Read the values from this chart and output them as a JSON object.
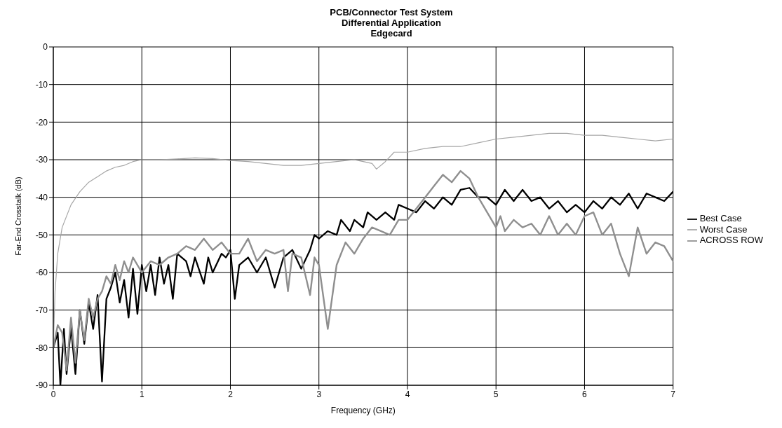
{
  "chart_data": {
    "type": "line",
    "title": "PCB/Connector Test System",
    "subtitle": "Differential Application\nEdgecard",
    "xlabel": "Frequency (GHz)",
    "ylabel": "Far-End Crosstalk (dB)",
    "xlim": [
      0,
      7
    ],
    "xticks": [
      0,
      1,
      2,
      3,
      4,
      5,
      6,
      7
    ],
    "ylim": [
      -90,
      0
    ],
    "yticks": [
      -90,
      -80,
      -70,
      -60,
      -50,
      -40,
      -30,
      -20,
      -10,
      0
    ],
    "grid": true,
    "legend": "right",
    "marker": "none",
    "line_style": "solid",
    "series": [
      {
        "name": "Best Case",
        "color": "#000000",
        "x": [
          0,
          0.05,
          0.08,
          0.12,
          0.15,
          0.2,
          0.25,
          0.3,
          0.35,
          0.4,
          0.45,
          0.5,
          0.55,
          0.6,
          0.65,
          0.7,
          0.75,
          0.8,
          0.85,
          0.9,
          0.95,
          1.0,
          1.05,
          1.1,
          1.15,
          1.2,
          1.25,
          1.3,
          1.35,
          1.4,
          1.5,
          1.55,
          1.6,
          1.7,
          1.75,
          1.8,
          1.9,
          1.95,
          2.0,
          2.05,
          2.1,
          2.2,
          2.3,
          2.4,
          2.5,
          2.6,
          2.7,
          2.8,
          2.9,
          2.95,
          3.0,
          3.1,
          3.2,
          3.25,
          3.35,
          3.4,
          3.5,
          3.55,
          3.65,
          3.75,
          3.85,
          3.9,
          4.0,
          4.1,
          4.2,
          4.3,
          4.4,
          4.5,
          4.6,
          4.7,
          4.8,
          4.9,
          5.0,
          5.1,
          5.2,
          5.3,
          5.4,
          5.5,
          5.6,
          5.7,
          5.8,
          5.9,
          6.0,
          6.1,
          6.2,
          6.3,
          6.4,
          6.5,
          6.6,
          6.7,
          6.8,
          6.9,
          7.0
        ],
        "values": [
          -80,
          -76,
          -90,
          -75,
          -87,
          -74.5,
          -87,
          -70,
          -79,
          -68,
          -75,
          -66,
          -89,
          -67,
          -64,
          -60,
          -68,
          -62,
          -72,
          -59,
          -71,
          -58,
          -65,
          -58,
          -66,
          -56,
          -63,
          -58,
          -67,
          -55,
          -57,
          -61,
          -56,
          -63,
          -56,
          -60,
          -55,
          -56,
          -54,
          -67,
          -58,
          -56,
          -60,
          -56,
          -64,
          -56,
          -54,
          -59,
          -54,
          -50,
          -51,
          -49,
          -50,
          -46,
          -49,
          -46,
          -48,
          -44,
          -46,
          -44,
          -46,
          -42,
          -43,
          -44,
          -41,
          -43,
          -40,
          -42,
          -38,
          -37.5,
          -40,
          -40,
          -42,
          -38,
          -41,
          -38,
          -41,
          -40,
          -43,
          -41,
          -44,
          -42,
          -44,
          -41,
          -43,
          -40,
          -42,
          -39,
          -43,
          -39,
          -40,
          -41,
          -38.5
        ]
      },
      {
        "name": "Worst Case",
        "color": "#a6a6a6",
        "x": [
          0,
          0.02,
          0.05,
          0.1,
          0.2,
          0.3,
          0.4,
          0.5,
          0.6,
          0.7,
          0.8,
          0.9,
          1.0,
          1.2,
          1.4,
          1.6,
          1.8,
          2.0,
          2.2,
          2.4,
          2.6,
          2.8,
          3.0,
          3.2,
          3.4,
          3.5,
          3.6,
          3.65,
          3.75,
          3.85,
          4.0,
          4.2,
          4.4,
          4.6,
          4.8,
          5.0,
          5.2,
          5.4,
          5.6,
          5.8,
          6.0,
          6.2,
          6.4,
          6.6,
          6.8,
          7.0
        ],
        "values": [
          -80,
          -65,
          -55,
          -48,
          -42,
          -38.5,
          -36,
          -34.5,
          -33,
          -32,
          -31.5,
          -30.5,
          -30,
          -30,
          -29.8,
          -29.5,
          -29.7,
          -30.2,
          -30.5,
          -31,
          -31.5,
          -31.5,
          -31,
          -30.5,
          -30,
          -30.5,
          -31,
          -32.5,
          -30.5,
          -28,
          -28,
          -27,
          -26.5,
          -26.5,
          -25.5,
          -24.5,
          -24,
          -23.5,
          -23,
          -23,
          -23.5,
          -23.5,
          -24,
          -24.5,
          -25,
          -24.5
        ]
      },
      {
        "name": "ACROSS ROW",
        "color": "#8f8f8f",
        "x": [
          0,
          0.05,
          0.1,
          0.15,
          0.2,
          0.25,
          0.3,
          0.35,
          0.4,
          0.45,
          0.5,
          0.55,
          0.6,
          0.65,
          0.7,
          0.75,
          0.8,
          0.85,
          0.9,
          1.0,
          1.1,
          1.2,
          1.3,
          1.4,
          1.5,
          1.6,
          1.7,
          1.8,
          1.9,
          2.0,
          2.1,
          2.2,
          2.3,
          2.4,
          2.5,
          2.6,
          2.65,
          2.7,
          2.8,
          2.9,
          2.95,
          3.0,
          3.1,
          3.2,
          3.3,
          3.4,
          3.5,
          3.6,
          3.7,
          3.8,
          3.9,
          4.0,
          4.1,
          4.2,
          4.3,
          4.4,
          4.5,
          4.6,
          4.7,
          4.8,
          4.9,
          5.0,
          5.05,
          5.1,
          5.2,
          5.3,
          5.4,
          5.5,
          5.6,
          5.7,
          5.8,
          5.9,
          6.0,
          6.1,
          6.2,
          6.3,
          6.4,
          6.5,
          6.6,
          6.7,
          6.8,
          6.9,
          7.0
        ],
        "values": [
          -80,
          -74,
          -76,
          -86,
          -72,
          -84,
          -70,
          -78,
          -67,
          -72,
          -67,
          -65,
          -61,
          -63,
          -58,
          -62,
          -57,
          -60,
          -56,
          -60,
          -57,
          -58,
          -56,
          -55,
          -53,
          -54,
          -51,
          -54,
          -52,
          -55,
          -55,
          -51,
          -57,
          -54,
          -55,
          -54,
          -65,
          -55,
          -56,
          -66,
          -56,
          -58,
          -75,
          -58,
          -52,
          -55,
          -51,
          -48,
          -49,
          -50,
          -46,
          -46,
          -43,
          -40,
          -37,
          -34,
          -36,
          -33,
          -35,
          -40,
          -44,
          -48,
          -45,
          -49,
          -46,
          -48,
          -47,
          -50,
          -45,
          -50,
          -47,
          -50,
          -45,
          -44,
          -50,
          -47,
          -55,
          -61,
          -48,
          -55,
          -52,
          -53,
          -57
        ]
      }
    ]
  }
}
